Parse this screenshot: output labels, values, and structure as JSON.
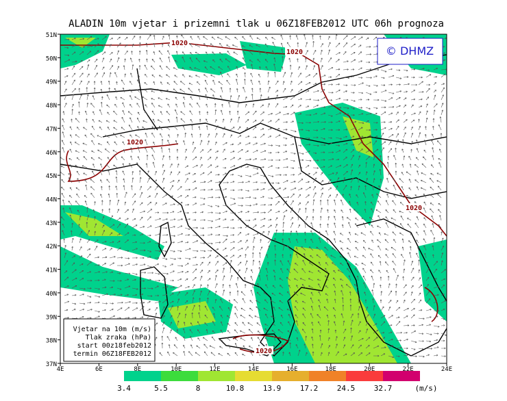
{
  "header": {
    "title": "ALADIN 10m vjetar i prizemni tlak u 06Z18FEB2012 UTC 06h prognoza",
    "copyright": "© DHMZ"
  },
  "axes": {
    "latitudes": [
      "51N",
      "50N",
      "49N",
      "48N",
      "47N",
      "46N",
      "45N",
      "44N",
      "43N",
      "42N",
      "41N",
      "40N",
      "39N",
      "38N",
      "37N"
    ],
    "longitudes": [
      "4E",
      "6E",
      "8E",
      "10E",
      "12E",
      "14E",
      "16E",
      "18E",
      "20E",
      "22E",
      "24E"
    ]
  },
  "isobar_labels": [
    "1020",
    "1020",
    "1020",
    "1020",
    "1020"
  ],
  "info_box": [
    "Vjetar na 10m (m/s)",
    "Tlak zraka (hPa)",
    "start 00z18feb2012",
    "termin 06Z18FEB2012"
  ],
  "colorbar": {
    "thresholds": [
      3.4,
      5.5,
      8,
      10.8,
      13.9,
      17.2,
      24.5,
      32.7
    ],
    "unit": "(m/s)",
    "colors": [
      "#00d28c",
      "#3cdc3c",
      "#a0e632",
      "#e6dc32",
      "#e6af2d",
      "#f08228",
      "#fa3c3c",
      "#d2006e",
      "#a000c8"
    ]
  }
}
